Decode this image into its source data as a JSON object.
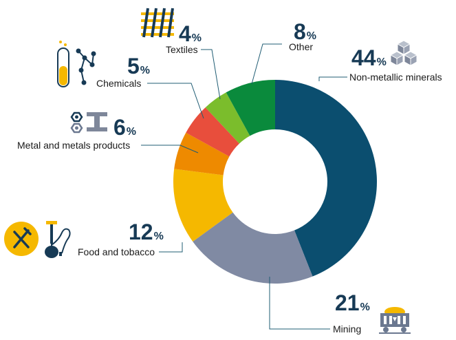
{
  "chart_data": {
    "type": "pie",
    "donut": true,
    "categories": [
      "Non-metallic minerals",
      "Mining",
      "Food and tobacco",
      "Metal and metals products",
      "Chemicals",
      "Textiles",
      "Other"
    ],
    "values": [
      44,
      21,
      12,
      6,
      5,
      4,
      8
    ],
    "value_labels": [
      "44",
      "21",
      "12",
      "6",
      "5",
      "4",
      "8"
    ],
    "unit": "%",
    "colors": [
      "#0b4e6f",
      "#808aa3",
      "#f5b800",
      "#ee8a00",
      "#e84e3c",
      "#7bbd2c",
      "#0a8a3c"
    ],
    "title": "",
    "legend": "none"
  },
  "icons": {
    "Non-metallic minerals": "cubes-icon",
    "Mining": "mine-cart-icon",
    "Food and tobacco": "fork-knife-hookah-icon",
    "Metal and metals products": "nut-ibeam-icon",
    "Chemicals": "test-tube-molecule-icon",
    "Textiles": "fabric-weave-icon",
    "Other": ""
  }
}
